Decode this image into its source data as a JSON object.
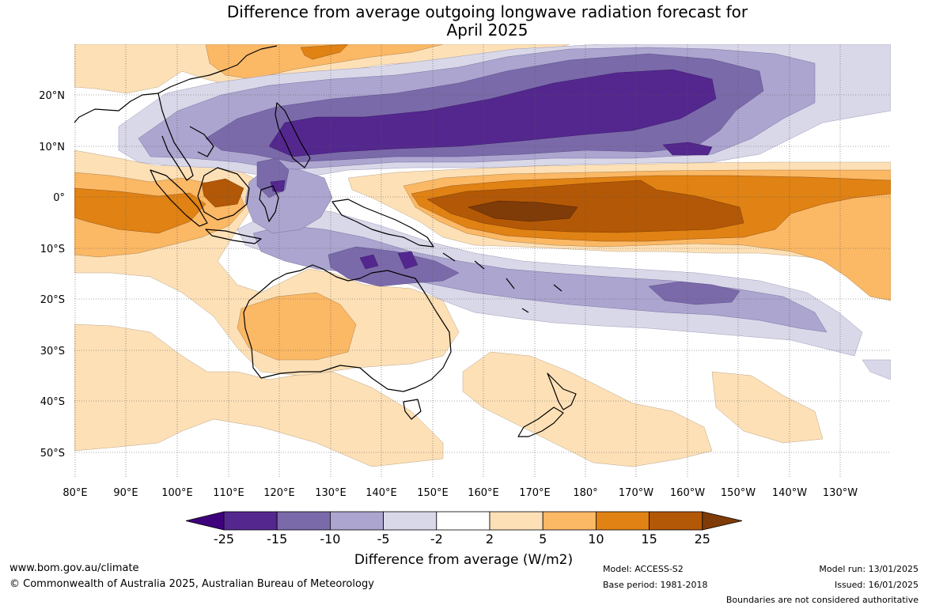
{
  "title_lines": [
    "Difference from average outgoing longwave radiation forecast for",
    "April 2025"
  ],
  "latitude_labels": [
    "20°N",
    "10°N",
    "0°",
    "10°S",
    "20°S",
    "30°S",
    "40°S",
    "50°S"
  ],
  "longitude_labels": [
    "80°E",
    "90°E",
    "100°E",
    "110°E",
    "120°E",
    "130°E",
    "140°E",
    "150°E",
    "160°E",
    "170°E",
    "180°",
    "170°W",
    "160°W",
    "150°W",
    "140°W",
    "130°W"
  ],
  "colorbar": {
    "title": "Difference from average (W/m2)",
    "tick_labels": [
      "-25",
      "-15",
      "-10",
      "-5",
      "-2",
      "2",
      "5",
      "10",
      "15",
      "25"
    ],
    "colors": [
      "#54278f",
      "#7b6aaa",
      "#aca5cf",
      "#d9d8e9",
      "#ffffff",
      "#fde0b6",
      "#fbb865",
      "#e08214",
      "#b35806",
      "#7f3b08"
    ],
    "low_extend_color": "#3f007d",
    "high_extend_color": "#7f3b08"
  },
  "footer": {
    "website": "www.bom.gov.au/climate",
    "copyright": "© Commonwealth of Australia 2025, Australian Bureau of Meteorology",
    "model": "Model: ACCESS-S2",
    "base_period": "Base period: 1981-2018",
    "model_run": "Model run: 13/01/2025",
    "issued": "Issued: 16/01/2025",
    "disclaimer": "Boundaries are not considered authoritative"
  }
}
